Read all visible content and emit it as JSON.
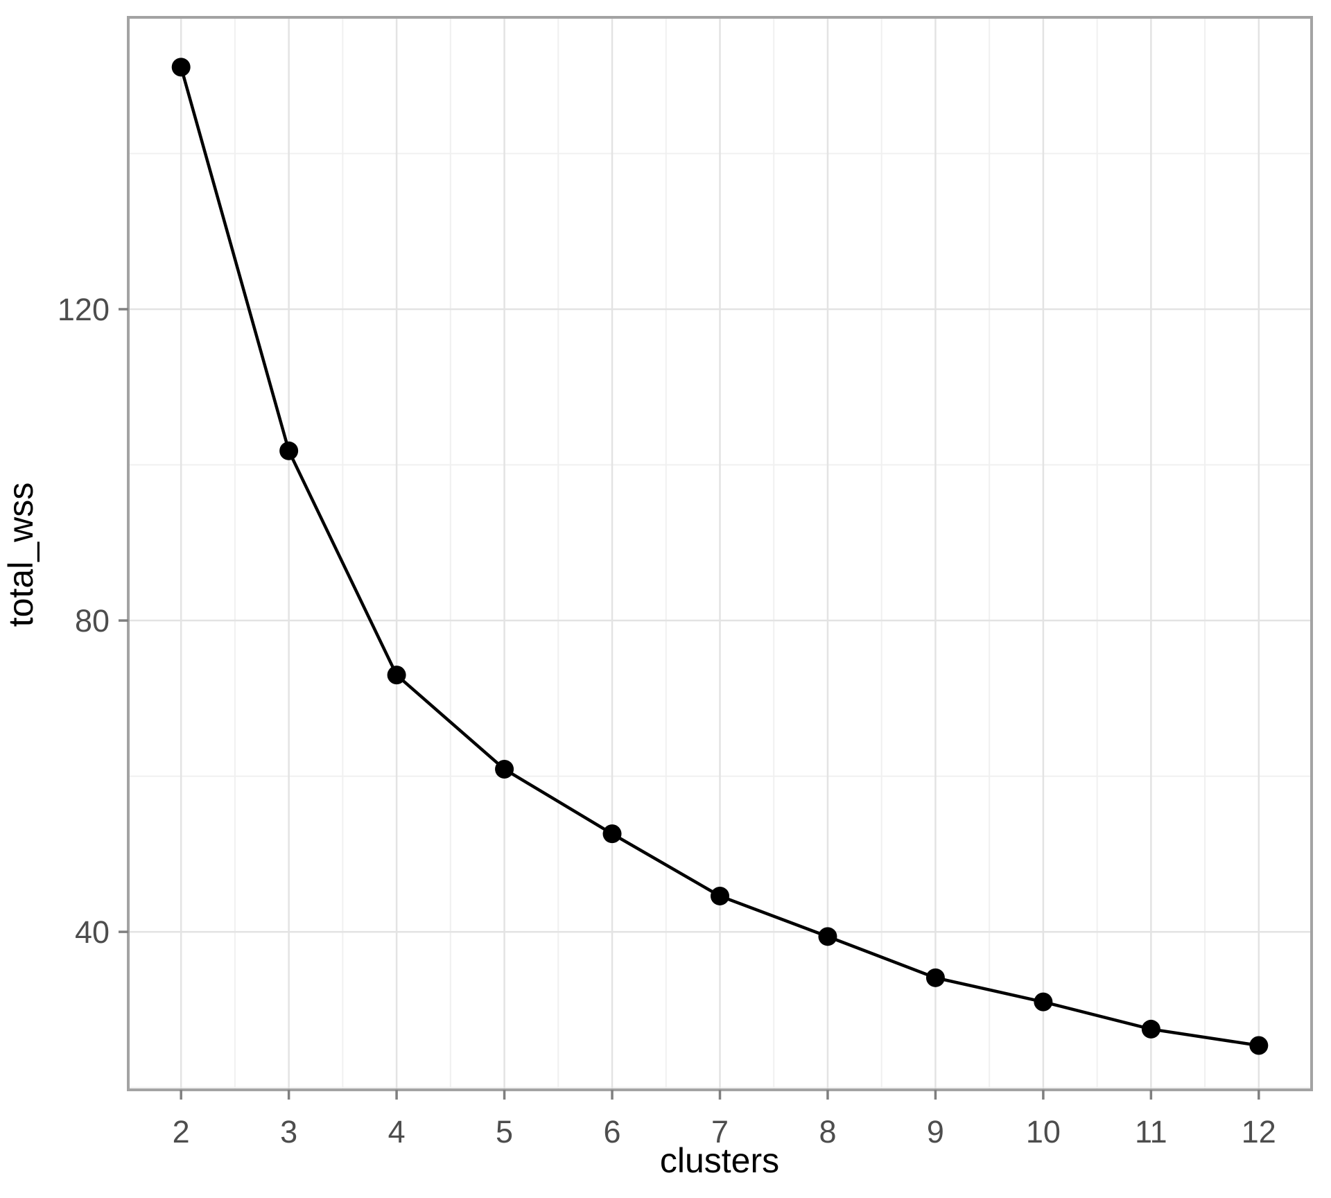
{
  "chart_data": {
    "type": "line",
    "title": "",
    "xlabel": "clusters",
    "ylabel": "total_wss",
    "series": [
      {
        "name": "total_wss",
        "x": [
          2,
          3,
          4,
          5,
          6,
          7,
          8,
          9,
          10,
          11,
          12
        ],
        "y": [
          151.1,
          101.8,
          73.0,
          60.9,
          52.6,
          44.6,
          39.4,
          34.1,
          31.0,
          27.5,
          25.4
        ]
      }
    ],
    "x_breaks": [
      2,
      3,
      4,
      5,
      6,
      7,
      8,
      9,
      10,
      11,
      12
    ],
    "x_tick_labels": [
      "2",
      "3",
      "4",
      "5",
      "6",
      "7",
      "8",
      "9",
      "10",
      "11",
      "12"
    ],
    "x_minor_breaks": [
      2.5,
      3.5,
      4.5,
      5.5,
      6.5,
      7.5,
      8.5,
      9.5,
      10.5,
      11.5
    ],
    "y_breaks": [
      40,
      80,
      120
    ],
    "y_tick_labels": [
      "40",
      "80",
      "120"
    ],
    "y_minor_breaks": [
      20,
      60,
      100,
      140
    ],
    "xlim": [
      1.51,
      12.49
    ],
    "ylim": [
      19.7,
      157.5
    ],
    "grid": "major-and-minor",
    "legend_position": "none",
    "marker": "filled-circle",
    "colors": {
      "line": "#000000",
      "point": "#000000",
      "panel_border": "#a3a3a3",
      "grid_major": "#e3e3e3",
      "grid_minor": "#f0f0f0",
      "tick": "#7f7f7f",
      "tick_label": "#4d4d4d",
      "axis_title": "#000000",
      "background": "#ffffff"
    }
  }
}
